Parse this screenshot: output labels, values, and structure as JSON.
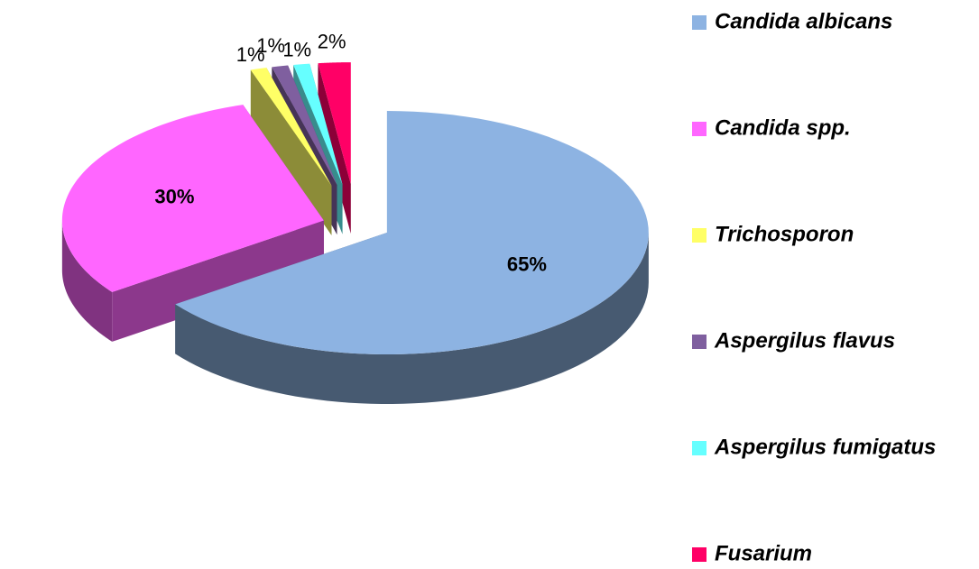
{
  "chart_data": {
    "type": "pie",
    "categories": [
      "Candida albicans",
      "Candida spp.",
      "Trichosporon",
      "Aspergilus flavus",
      "Aspergilus fumigatus",
      "Fusarium"
    ],
    "values": [
      65,
      30,
      1,
      1,
      1,
      2
    ],
    "value_labels": [
      "65%",
      "30%",
      "1%",
      "1%",
      "1%",
      "2%"
    ],
    "colors": [
      "#8db3e2",
      "#ff66ff",
      "#ffff66",
      "#7f5f9f",
      "#66ffff",
      "#ff0066"
    ],
    "legend": "right"
  }
}
